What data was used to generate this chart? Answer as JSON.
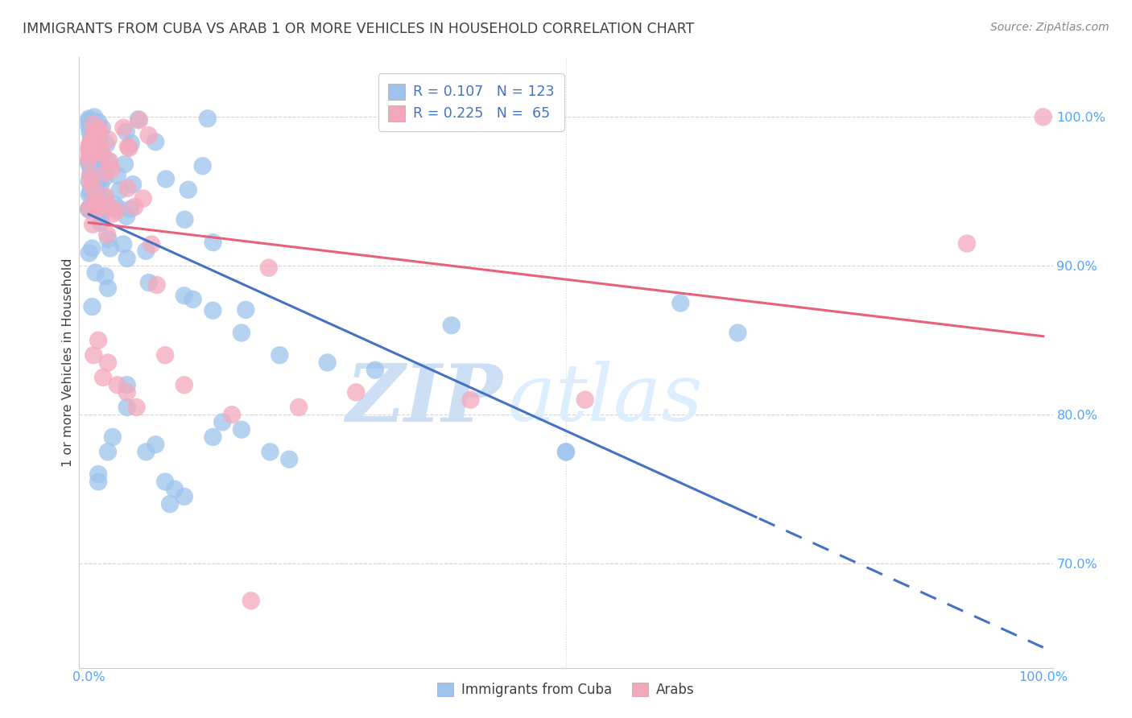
{
  "title": "IMMIGRANTS FROM CUBA VS ARAB 1 OR MORE VEHICLES IN HOUSEHOLD CORRELATION CHART",
  "source": "Source: ZipAtlas.com",
  "ylabel": "1 or more Vehicles in Household",
  "ytick_labels": [
    "100.0%",
    "90.0%",
    "80.0%",
    "70.0%"
  ],
  "ytick_values": [
    1.0,
    0.9,
    0.8,
    0.7
  ],
  "xlim": [
    -0.01,
    1.01
  ],
  "ylim": [
    0.63,
    1.04
  ],
  "legend_cuba_label": "R = 0.107   N = 123",
  "legend_arab_label": "R = 0.225   N =  65",
  "cuba_color": "#9ec4ed",
  "arab_color": "#f4a8bc",
  "line_cuba_color": "#4472c4",
  "line_arab_color": "#e8607a",
  "legend_text_color": "#4472c4",
  "title_color": "#404040",
  "source_color": "#888888",
  "axis_label_color": "#4da6ff",
  "watermark_color": "#ccdff5",
  "background_color": "#ffffff",
  "grid_color": "#cccccc",
  "bottom_legend_cuba": "Immigrants from Cuba",
  "bottom_legend_arab": "Arabs"
}
